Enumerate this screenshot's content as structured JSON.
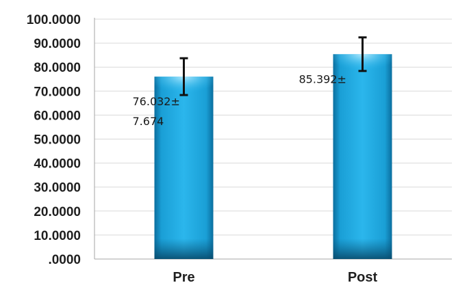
{
  "chart_data": {
    "type": "bar",
    "categories": [
      "Pre",
      "Post"
    ],
    "values": [
      76.032,
      85.392
    ],
    "errors": [
      7.674,
      7.0
    ],
    "data_labels": [
      [
        "76.032±",
        "7.674"
      ],
      [
        "85.392±"
      ]
    ],
    "yticks": [
      "100.0000",
      "90.0000",
      "80.0000",
      "70.0000",
      "60.0000",
      "50.0000",
      "40.0000",
      "30.0000",
      "20.0000",
      "10.0000",
      ".0000"
    ],
    "ylim": [
      0,
      100
    ],
    "grid": true,
    "legend": "none",
    "title": "",
    "xlabel": "",
    "ylabel": "",
    "colors": {
      "bar": "#1fa6dc",
      "bar_dark": "#0a5d86",
      "grid": "#d9d9d9",
      "axis": "#a6a6a6",
      "error": "#111111"
    }
  }
}
